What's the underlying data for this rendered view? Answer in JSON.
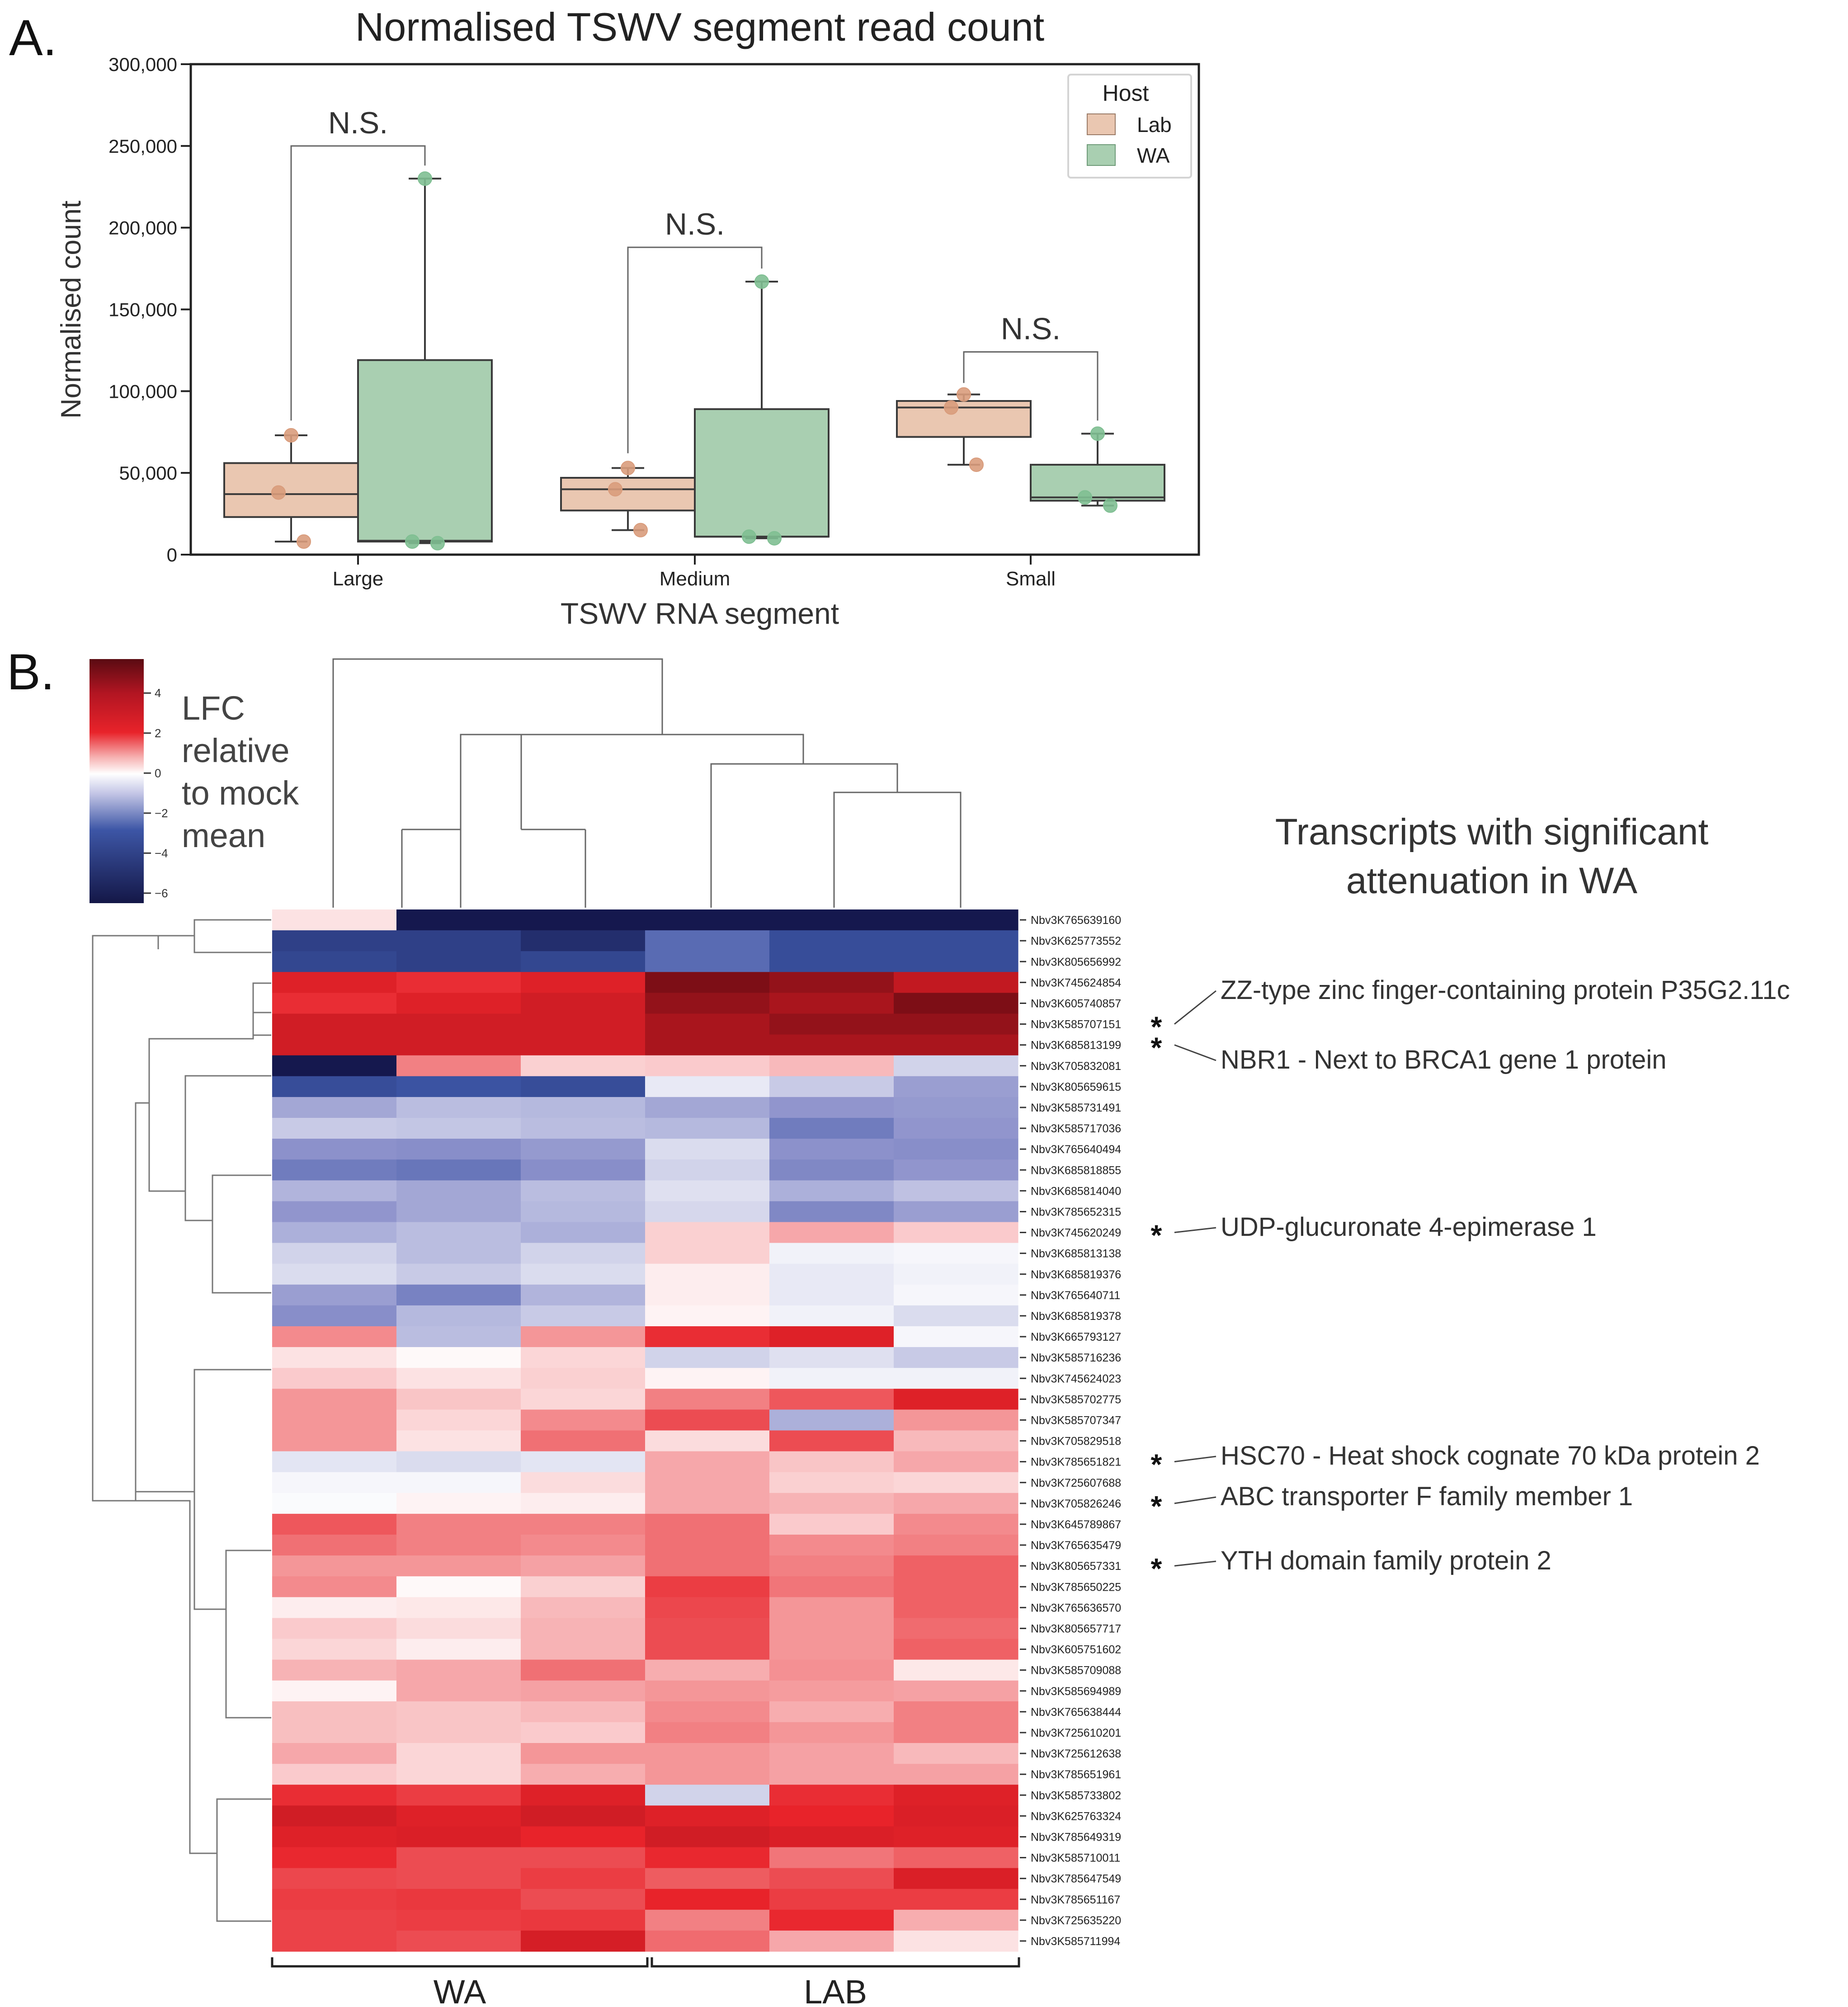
{
  "panel_a": {
    "label": "A.",
    "chart_data": {
      "type": "box",
      "title": "Normalised TSWV segment read count",
      "xlabel": "TSWV RNA segment",
      "ylabel": "Normalised count",
      "ylim": [
        0,
        300000
      ],
      "yticks": [
        0,
        50000,
        100000,
        150000,
        200000,
        250000,
        300000
      ],
      "ytick_labels": [
        "0",
        "50,000",
        "100,000",
        "150,000",
        "200,000",
        "250,000",
        "300,000"
      ],
      "categories": [
        "Large",
        "Medium",
        "Small"
      ],
      "legend": {
        "title": "Host",
        "placement": "top-right",
        "entries": [
          "Lab",
          "WA"
        ]
      },
      "colors": {
        "Lab_fill": "#eac7b1",
        "Lab_point": "#d99c7c",
        "WA_fill": "#a9cfb1",
        "WA_point": "#7fbf92",
        "line": "#3a3a3a"
      },
      "series": [
        {
          "name": "Lab",
          "boxes": [
            {
              "category": "Large",
              "whisker_low": 8000,
              "q1": 23000,
              "median": 37000,
              "q3": 56000,
              "whisker_high": 73000,
              "points": [
                73000,
                38000,
                8000
              ]
            },
            {
              "category": "Medium",
              "whisker_low": 15000,
              "q1": 27000,
              "median": 40000,
              "q3": 47000,
              "whisker_high": 53000,
              "points": [
                53000,
                40000,
                15000
              ]
            },
            {
              "category": "Small",
              "whisker_low": 55000,
              "q1": 72000,
              "median": 90000,
              "q3": 94000,
              "whisker_high": 98000,
              "points": [
                98000,
                90000,
                55000
              ]
            }
          ]
        },
        {
          "name": "WA",
          "boxes": [
            {
              "category": "Large",
              "whisker_low": 7000,
              "q1": 8000,
              "median": 8500,
              "q3": 119000,
              "whisker_high": 230000,
              "points": [
                230000,
                8000,
                7000
              ]
            },
            {
              "category": "Medium",
              "whisker_low": 10000,
              "q1": 11000,
              "median": 11000,
              "q3": 89000,
              "whisker_high": 167000,
              "points": [
                167000,
                11000,
                10000
              ]
            },
            {
              "category": "Small",
              "whisker_low": 30000,
              "q1": 33000,
              "median": 35000,
              "q3": 55000,
              "whisker_high": 74000,
              "points": [
                74000,
                35000,
                30000
              ]
            }
          ]
        }
      ],
      "annotations": [
        {
          "text": "N.S.",
          "category": "Large",
          "bracket_low_lab": 82000,
          "bracket_low_wa": 238000,
          "bracket_top": 250000
        },
        {
          "text": "N.S.",
          "category": "Medium",
          "bracket_low_lab": 62000,
          "bracket_low_wa": 175000,
          "bracket_top": 188000
        },
        {
          "text": "N.S.",
          "category": "Small",
          "bracket_low_lab": 105000,
          "bracket_low_wa": 82000,
          "bracket_top": 124000
        }
      ]
    }
  },
  "panel_b": {
    "label": "B.",
    "chart_data": {
      "type": "heatmap",
      "colorbar": {
        "title_lines": [
          "LFC",
          "relative",
          "to mock",
          "mean"
        ],
        "range": [
          -6.5,
          5.7
        ],
        "ticks": [
          4,
          2,
          0,
          -2,
          -4,
          -6
        ],
        "tick_labels": [
          "4",
          "2",
          "0",
          "−2",
          "−4",
          "−6"
        ]
      },
      "heading_lines": [
        "Transcripts with significant",
        "attenuation in WA"
      ],
      "column_groups": [
        {
          "label": "WA",
          "columns": [
            0,
            1,
            2
          ]
        },
        {
          "label": "LAB",
          "columns": [
            3,
            4,
            5
          ]
        }
      ],
      "rows": [
        {
          "name": "Nbv3K765639160",
          "values": [
            0.5,
            -6.5,
            -6.5,
            -6.5,
            -6.5,
            -6.5
          ]
        },
        {
          "name": "Nbv3K625773552",
          "values": [
            -5.2,
            -5.2,
            -5.8,
            -3.8,
            -4.8,
            -4.8
          ]
        },
        {
          "name": "Nbv3K805656992",
          "values": [
            -5.0,
            -5.2,
            -5.0,
            -3.8,
            -4.8,
            -4.8
          ]
        },
        {
          "name": "Nbv3K745624854",
          "values": [
            4.2,
            3.8,
            4.2,
            5.8,
            5.5,
            4.8
          ]
        },
        {
          "name": "Nbv3K605740857",
          "values": [
            3.8,
            4.2,
            4.5,
            5.5,
            5.2,
            5.8
          ]
        },
        {
          "name": "Nbv3K585707151",
          "values": [
            4.5,
            4.5,
            4.5,
            5.2,
            5.5,
            5.5
          ]
        },
        {
          "name": "Nbv3K685813199",
          "values": [
            4.5,
            4.5,
            4.5,
            5.2,
            5.2,
            5.2
          ]
        },
        {
          "name": "Nbv3K705832081",
          "values": [
            -6.5,
            2.2,
            0.8,
            0.9,
            1.2,
            -1.0
          ]
        },
        {
          "name": "Nbv3K805659615",
          "values": [
            -4.8,
            -4.6,
            -4.8,
            -0.5,
            -1.2,
            -2.2
          ]
        },
        {
          "name": "Nbv3K585731491",
          "values": [
            -2.0,
            -1.5,
            -1.6,
            -2.0,
            -2.4,
            -2.3
          ]
        },
        {
          "name": "Nbv3K585717036",
          "values": [
            -1.2,
            -1.3,
            -1.5,
            -1.6,
            -3.2,
            -2.4
          ]
        },
        {
          "name": "Nbv3K765640494",
          "values": [
            -2.5,
            -2.6,
            -2.3,
            -0.8,
            -2.5,
            -2.6
          ]
        },
        {
          "name": "Nbv3K685818855",
          "values": [
            -3.2,
            -3.4,
            -2.6,
            -1.0,
            -2.8,
            -2.4
          ]
        },
        {
          "name": "Nbv3K685814040",
          "values": [
            -1.7,
            -2.0,
            -1.5,
            -0.7,
            -1.8,
            -1.4
          ]
        },
        {
          "name": "Nbv3K785652315",
          "values": [
            -2.4,
            -2.0,
            -1.6,
            -0.9,
            -2.8,
            -2.2
          ]
        },
        {
          "name": "Nbv3K745620249",
          "values": [
            -1.8,
            -1.5,
            -1.8,
            0.8,
            1.5,
            0.9
          ]
        },
        {
          "name": "Nbv3K685813138",
          "values": [
            -1.0,
            -1.5,
            -1.0,
            0.8,
            -0.3,
            -0.2
          ]
        },
        {
          "name": "Nbv3K685819376",
          "values": [
            -0.8,
            -1.2,
            -0.8,
            0.3,
            -0.5,
            -0.3
          ]
        },
        {
          "name": "Nbv3K765640711",
          "values": [
            -2.2,
            -3.0,
            -1.7,
            0.3,
            -0.5,
            -0.2
          ]
        },
        {
          "name": "Nbv3K685819378",
          "values": [
            -2.6,
            -1.6,
            -1.2,
            0.2,
            -0.3,
            -0.8
          ]
        },
        {
          "name": "Nbv3K665793127",
          "values": [
            2.0,
            -1.5,
            1.8,
            3.8,
            4.2,
            -0.2
          ]
        },
        {
          "name": "Nbv3K585716236",
          "values": [
            0.5,
            0.1,
            0.7,
            -1.0,
            -0.7,
            -1.2
          ]
        },
        {
          "name": "Nbv3K745624023",
          "values": [
            0.9,
            0.5,
            0.8,
            0.2,
            -0.3,
            -0.3
          ]
        },
        {
          "name": "Nbv3K585702775",
          "values": [
            1.8,
            1.0,
            0.7,
            2.2,
            3.0,
            4.2
          ]
        },
        {
          "name": "Nbv3K585707347",
          "values": [
            1.8,
            0.7,
            2.0,
            3.2,
            -1.8,
            1.8
          ]
        },
        {
          "name": "Nbv3K705829518",
          "values": [
            1.8,
            0.5,
            2.5,
            0.6,
            3.2,
            1.2
          ]
        },
        {
          "name": "Nbv3K785651821",
          "values": [
            -0.6,
            -0.8,
            -0.6,
            1.5,
            1.0,
            1.5
          ]
        },
        {
          "name": "Nbv3K725607688",
          "values": [
            -0.2,
            -0.2,
            0.6,
            1.5,
            0.8,
            0.7
          ]
        },
        {
          "name": "Nbv3K705826246",
          "values": [
            -0.1,
            0.2,
            0.3,
            1.5,
            1.3,
            1.5
          ]
        },
        {
          "name": "Nbv3K645789867",
          "values": [
            3.0,
            2.2,
            2.2,
            2.5,
            0.9,
            2.0
          ]
        },
        {
          "name": "Nbv3K765635479",
          "values": [
            2.5,
            2.2,
            2.0,
            2.5,
            2.0,
            2.2
          ]
        },
        {
          "name": "Nbv3K805657331",
          "values": [
            1.8,
            1.8,
            1.6,
            2.5,
            2.2,
            2.8
          ]
        },
        {
          "name": "Nbv3K785650225",
          "values": [
            2.0,
            0.1,
            0.8,
            3.5,
            2.4,
            2.8
          ]
        },
        {
          "name": "Nbv3K765636570",
          "values": [
            0.3,
            0.4,
            1.2,
            3.3,
            1.8,
            2.8
          ]
        },
        {
          "name": "Nbv3K805657717",
          "values": [
            0.9,
            0.6,
            1.3,
            3.2,
            1.8,
            2.6
          ]
        },
        {
          "name": "Nbv3K605751602",
          "values": [
            0.7,
            0.3,
            1.3,
            3.2,
            1.8,
            2.8
          ]
        },
        {
          "name": "Nbv3K585709088",
          "values": [
            1.3,
            1.5,
            2.5,
            1.4,
            1.9,
            0.4
          ]
        },
        {
          "name": "Nbv3K585694989",
          "values": [
            0.2,
            1.5,
            1.6,
            1.8,
            1.7,
            1.6
          ]
        },
        {
          "name": "Nbv3K765638444",
          "values": [
            1.1,
            1.0,
            1.2,
            2.0,
            1.4,
            2.2
          ]
        },
        {
          "name": "Nbv3K725610201",
          "values": [
            1.1,
            1.0,
            0.9,
            2.2,
            1.8,
            2.2
          ]
        },
        {
          "name": "Nbv3K725612638",
          "values": [
            1.5,
            0.7,
            1.8,
            1.8,
            1.6,
            1.2
          ]
        },
        {
          "name": "Nbv3K785651961",
          "values": [
            0.9,
            0.7,
            1.4,
            1.8,
            1.6,
            1.6
          ]
        },
        {
          "name": "Nbv3K585733802",
          "values": [
            3.8,
            3.5,
            4.2,
            -1.0,
            3.8,
            4.2
          ]
        },
        {
          "name": "Nbv3K625763324",
          "values": [
            4.5,
            4.2,
            4.5,
            4.2,
            4.0,
            4.3
          ]
        },
        {
          "name": "Nbv3K785649319",
          "values": [
            4.2,
            4.3,
            4.0,
            4.5,
            4.3,
            4.2
          ]
        },
        {
          "name": "Nbv3K585710011",
          "values": [
            3.9,
            3.2,
            3.2,
            3.9,
            2.4,
            2.8
          ]
        },
        {
          "name": "Nbv3K785647549",
          "values": [
            3.3,
            3.2,
            3.5,
            2.9,
            3.2,
            4.3
          ]
        },
        {
          "name": "Nbv3K785651167",
          "values": [
            3.5,
            3.6,
            3.2,
            4.0,
            3.5,
            3.5
          ]
        },
        {
          "name": "Nbv3K725635220",
          "values": [
            3.4,
            3.5,
            3.6,
            2.2,
            3.9,
            1.4
          ]
        },
        {
          "name": "Nbv3K585711994",
          "values": [
            3.4,
            3.2,
            4.4,
            2.6,
            1.5,
            0.5
          ]
        }
      ],
      "significant_annotations": [
        {
          "row": "Nbv3K585707151",
          "marker": "*",
          "text": "ZZ-type zinc finger-containing protein P35G2.11c"
        },
        {
          "row": "Nbv3K685813199",
          "marker": "*",
          "text": "NBR1 - Next to BRCA1 gene 1 protein"
        },
        {
          "row": "Nbv3K745620249",
          "marker": "*",
          "text": "UDP-glucuronate 4-epimerase 1"
        },
        {
          "row": "Nbv3K785651821",
          "marker": "*",
          "text": "HSC70 - Heat shock cognate 70 kDa protein 2"
        },
        {
          "row": "Nbv3K705826246",
          "marker": "*",
          "text": "ABC transporter F family member 1"
        },
        {
          "row": "Nbv3K805657331",
          "marker": "*",
          "text": "YTH domain family protein 2"
        }
      ],
      "colors": {
        "low": "#15184e",
        "mid_low": "#3d56a6",
        "center": "#ffffff",
        "mid_high": "#e8232a",
        "high": "#6e0c14"
      }
    }
  }
}
